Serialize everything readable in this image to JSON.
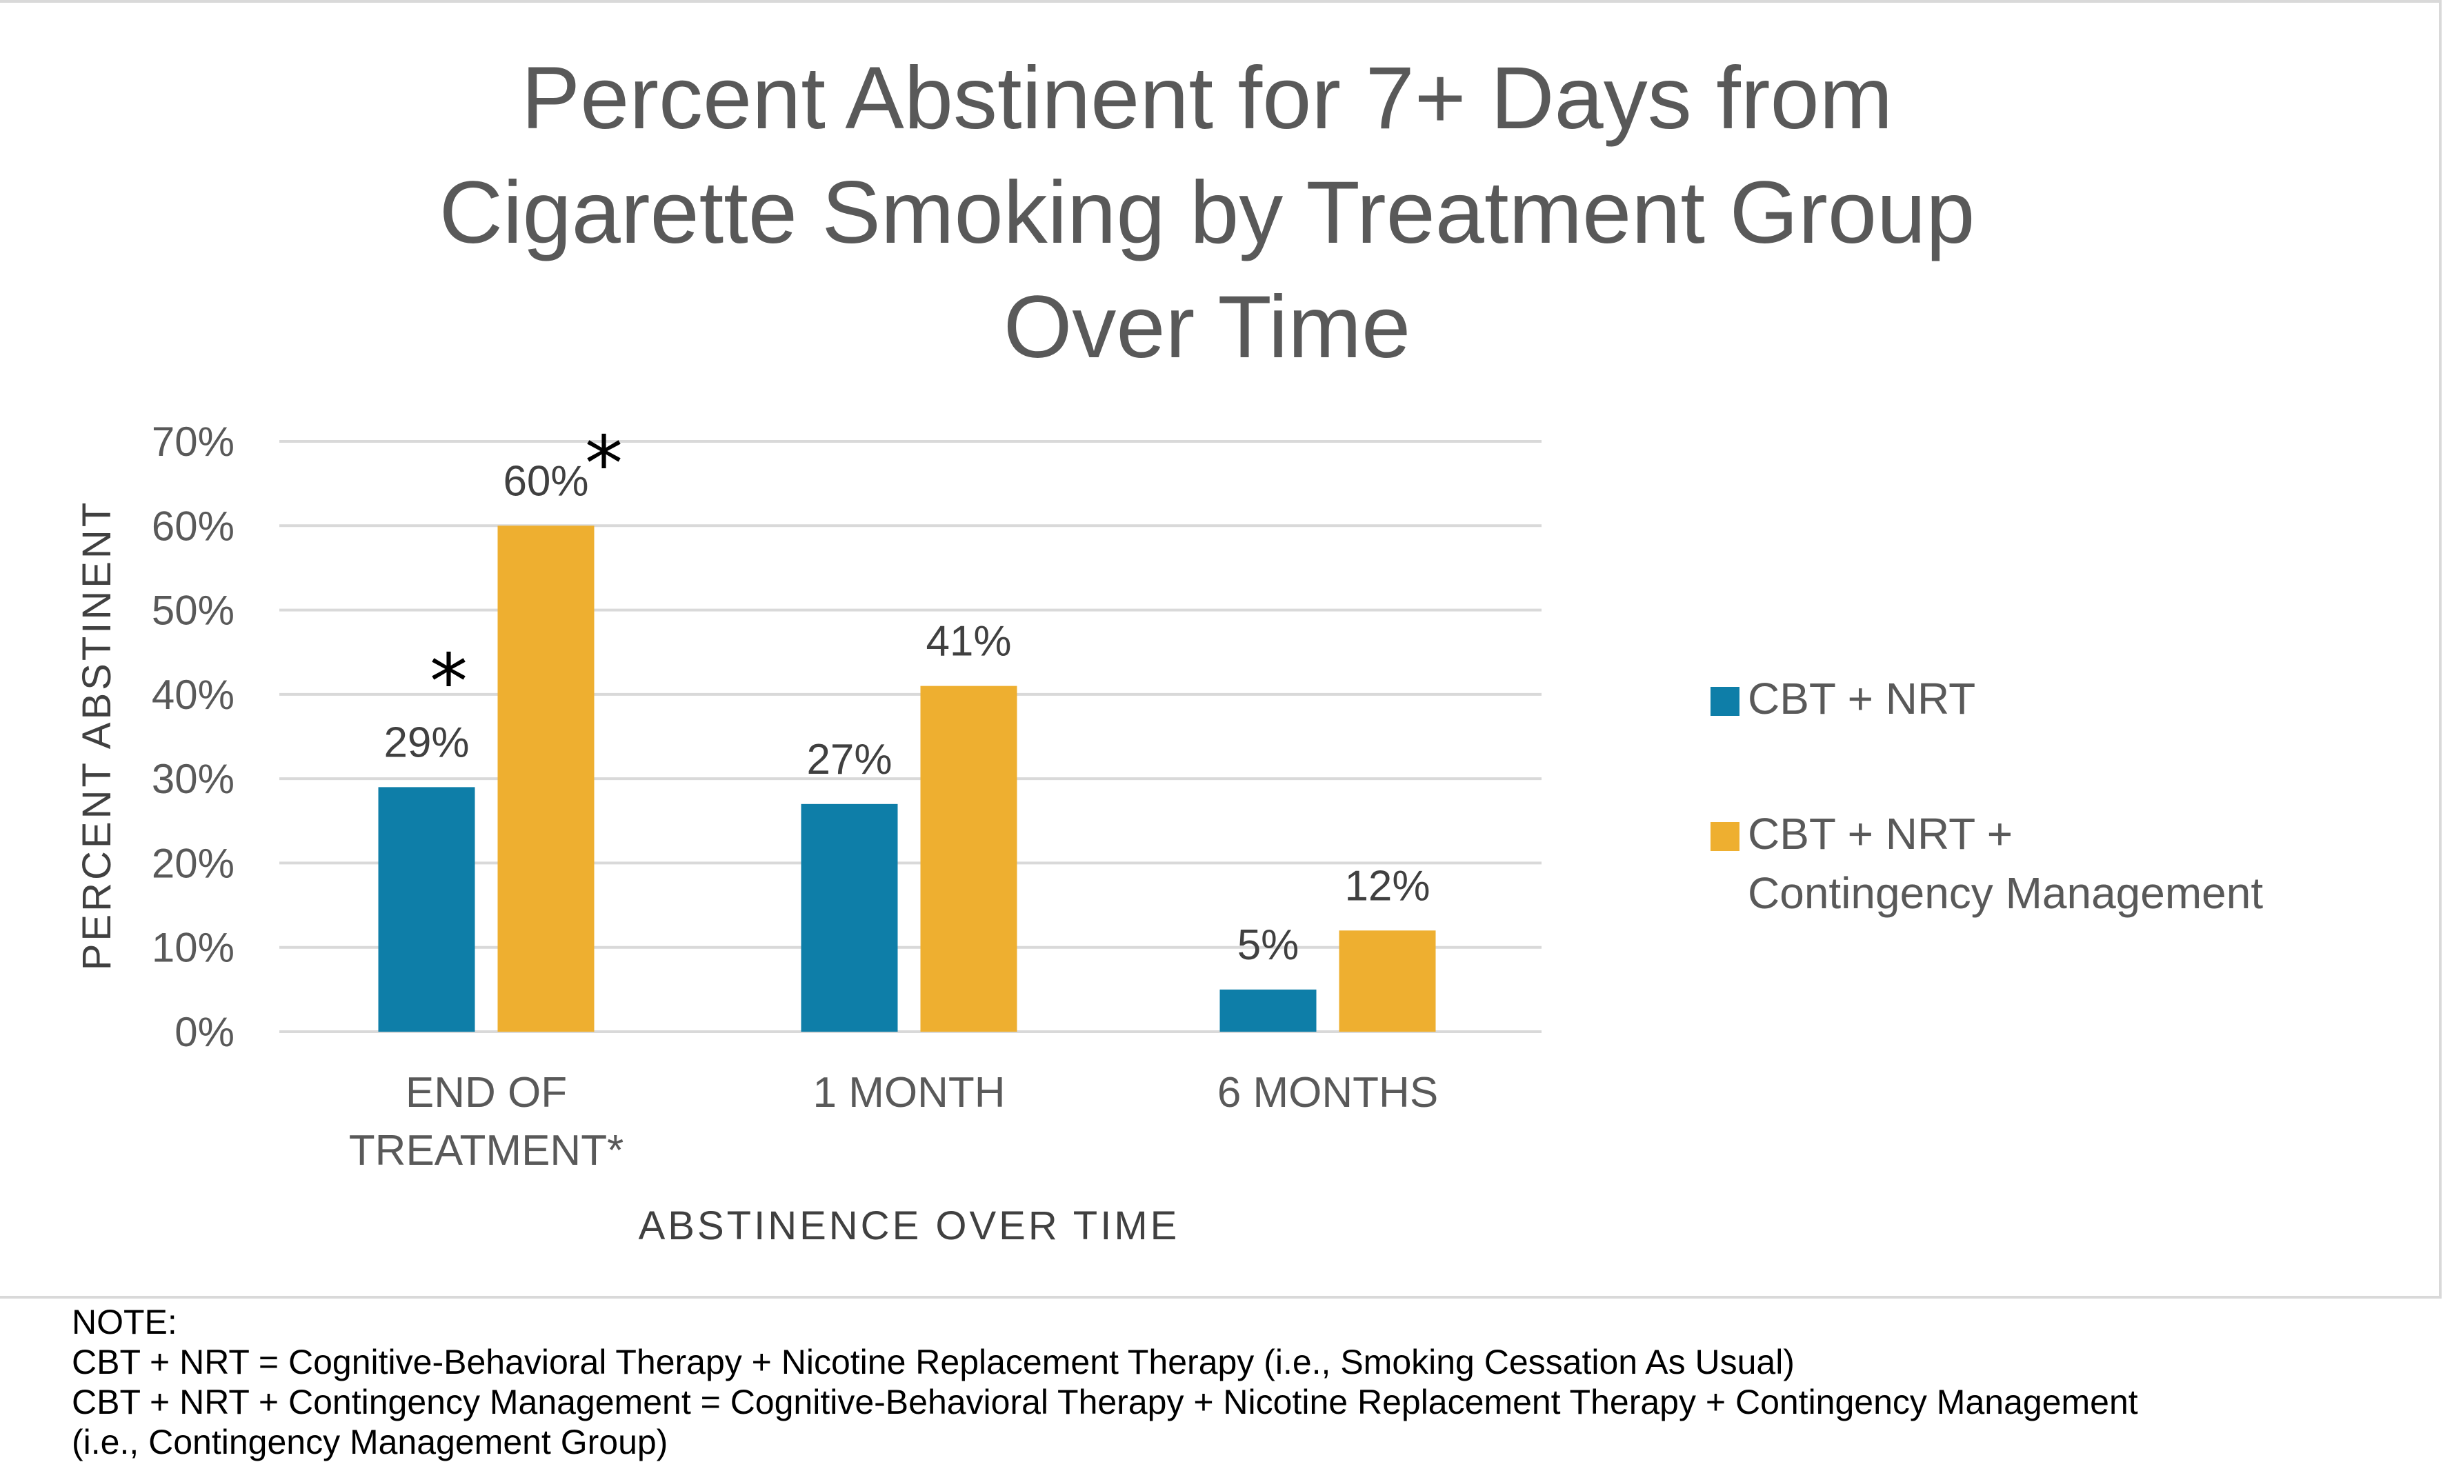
{
  "chart_data": {
    "type": "bar",
    "title": "Percent Abstinent for 7+ Days from Cigarette Smoking by Treatment Group Over Time",
    "title_lines": [
      "Percent Abstinent for 7+ Days from",
      "Cigarette Smoking by Treatment Group",
      "Over Time"
    ],
    "xlabel": "ABSTINENCE OVER TIME",
    "ylabel": "PERCENT ABSTINENT",
    "ylim": [
      0,
      70
    ],
    "yticks": [
      "0%",
      "10%",
      "20%",
      "30%",
      "40%",
      "50%",
      "60%",
      "70%"
    ],
    "categories": [
      {
        "lines": [
          "END OF",
          "TREATMENT*"
        ]
      },
      {
        "lines": [
          "1 MONTH"
        ]
      },
      {
        "lines": [
          "6 MONTHS"
        ]
      }
    ],
    "series": [
      {
        "name": "CBT + NRT",
        "color": "#0e7ea8",
        "values": [
          29,
          27,
          5
        ],
        "labels": [
          "29%",
          "27%",
          "5%"
        ]
      },
      {
        "name": "CBT + NRT + Contingency Management",
        "color": "#eeaf30",
        "values": [
          60,
          41,
          12
        ],
        "labels": [
          "60%",
          "41%",
          "12%"
        ]
      }
    ],
    "significance_markers": [
      {
        "category": 0,
        "series": 0,
        "text": "*"
      },
      {
        "category": 0,
        "series": 1,
        "text": "*"
      }
    ],
    "grid": true,
    "legend_position": "right"
  },
  "legend": {
    "items": [
      {
        "lines": [
          "CBT + NRT"
        ]
      },
      {
        "lines": [
          "CBT + NRT +",
          "Contingency Management"
        ]
      }
    ]
  },
  "note": {
    "heading": "NOTE:",
    "lines": [
      "CBT + NRT = Cognitive-Behavioral Therapy + Nicotine Replacement Therapy (i.e., Smoking Cessation As Usual)",
      "CBT + NRT + Contingency Management = Cognitive-Behavioral Therapy + Nicotine Replacement Therapy + Contingency Management",
      "(i.e., Contingency Management Group)"
    ]
  }
}
